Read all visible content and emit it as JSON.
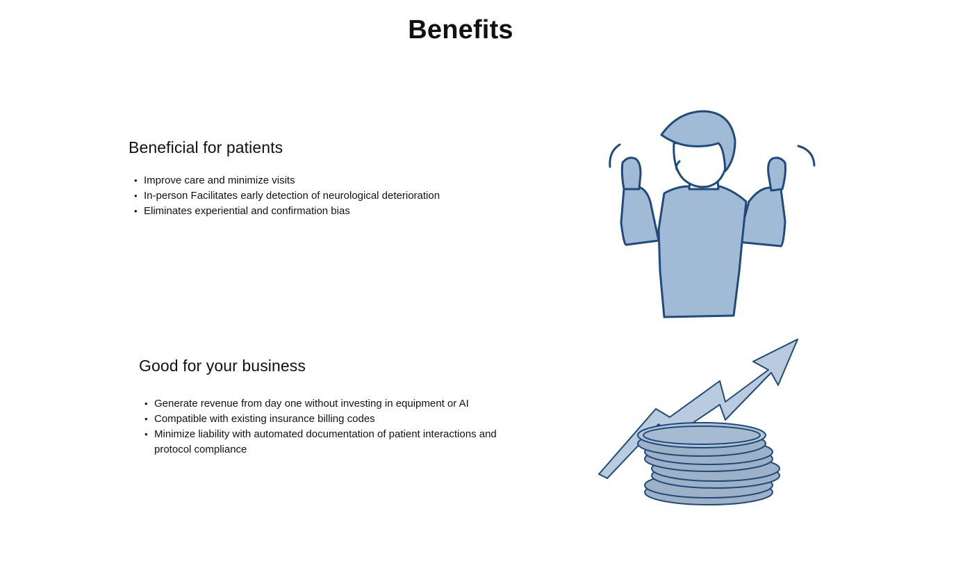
{
  "page": {
    "title": "Benefits"
  },
  "patients": {
    "heading": "Beneficial for patients",
    "items": [
      "Improve care and minimize visits",
      "In-person Facilitates early detection of neurological deterioration",
      "Eliminates experiential and confirmation bias"
    ]
  },
  "business": {
    "heading": "Good for your business",
    "items": [
      "Generate revenue from day one without investing in equipment or AI",
      "Compatible with existing insurance billing codes",
      "Minimize liability with automated documentation of patient interactions and protocol compliance"
    ]
  },
  "illustrations": {
    "patients_icon": "cheering-person-icon",
    "business_icon": "growth-coins-icon"
  },
  "colors": {
    "illustration_fill": "#a1bbd6",
    "illustration_stroke": "#1f4a7a",
    "coin_fill": "#9db2c9",
    "text": "#111111",
    "background": "#ffffff"
  }
}
